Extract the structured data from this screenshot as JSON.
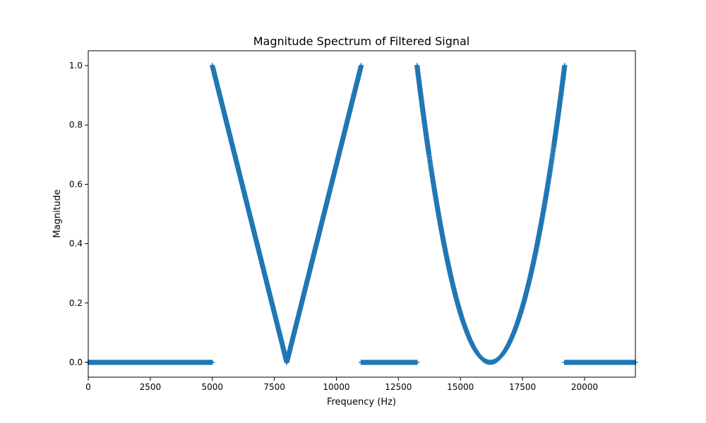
{
  "chart_data": {
    "type": "scatter",
    "title": "Magnitude Spectrum of Filtered Signal",
    "xlabel": "Frequency (Hz)",
    "ylabel": "Magnitude",
    "xlim": [
      0,
      22050
    ],
    "ylim": [
      -0.05,
      1.05
    ],
    "x_ticks": [
      0,
      2500,
      5000,
      7500,
      10000,
      12500,
      15000,
      17500,
      20000
    ],
    "x_tick_labels": [
      "0",
      "2500",
      "5000",
      "7500",
      "10000",
      "12500",
      "15000",
      "17500",
      "20000"
    ],
    "y_ticks": [
      0.0,
      0.2,
      0.4,
      0.6,
      0.8,
      1.0
    ],
    "y_tick_labels": [
      "0.0",
      "0.2",
      "0.4",
      "0.6",
      "0.8",
      "1.0"
    ],
    "grid": false,
    "marker": "+",
    "color": "#1f77b4",
    "segments": [
      {
        "x": [
          0,
          5000
        ],
        "y": [
          0,
          0
        ],
        "shape": "flat"
      },
      {
        "x": [
          5000,
          8000,
          11000
        ],
        "y": [
          1.0,
          0.0,
          1.0
        ],
        "shape": "v"
      },
      {
        "x": [
          11000,
          13250
        ],
        "y": [
          0,
          0
        ],
        "shape": "flat"
      },
      {
        "x": [
          13250,
          16200,
          19200
        ],
        "y": [
          1.0,
          0.0,
          1.0
        ],
        "shape": "parabola"
      },
      {
        "x": [
          19200,
          22050
        ],
        "y": [
          0,
          0
        ],
        "shape": "flat"
      }
    ]
  }
}
